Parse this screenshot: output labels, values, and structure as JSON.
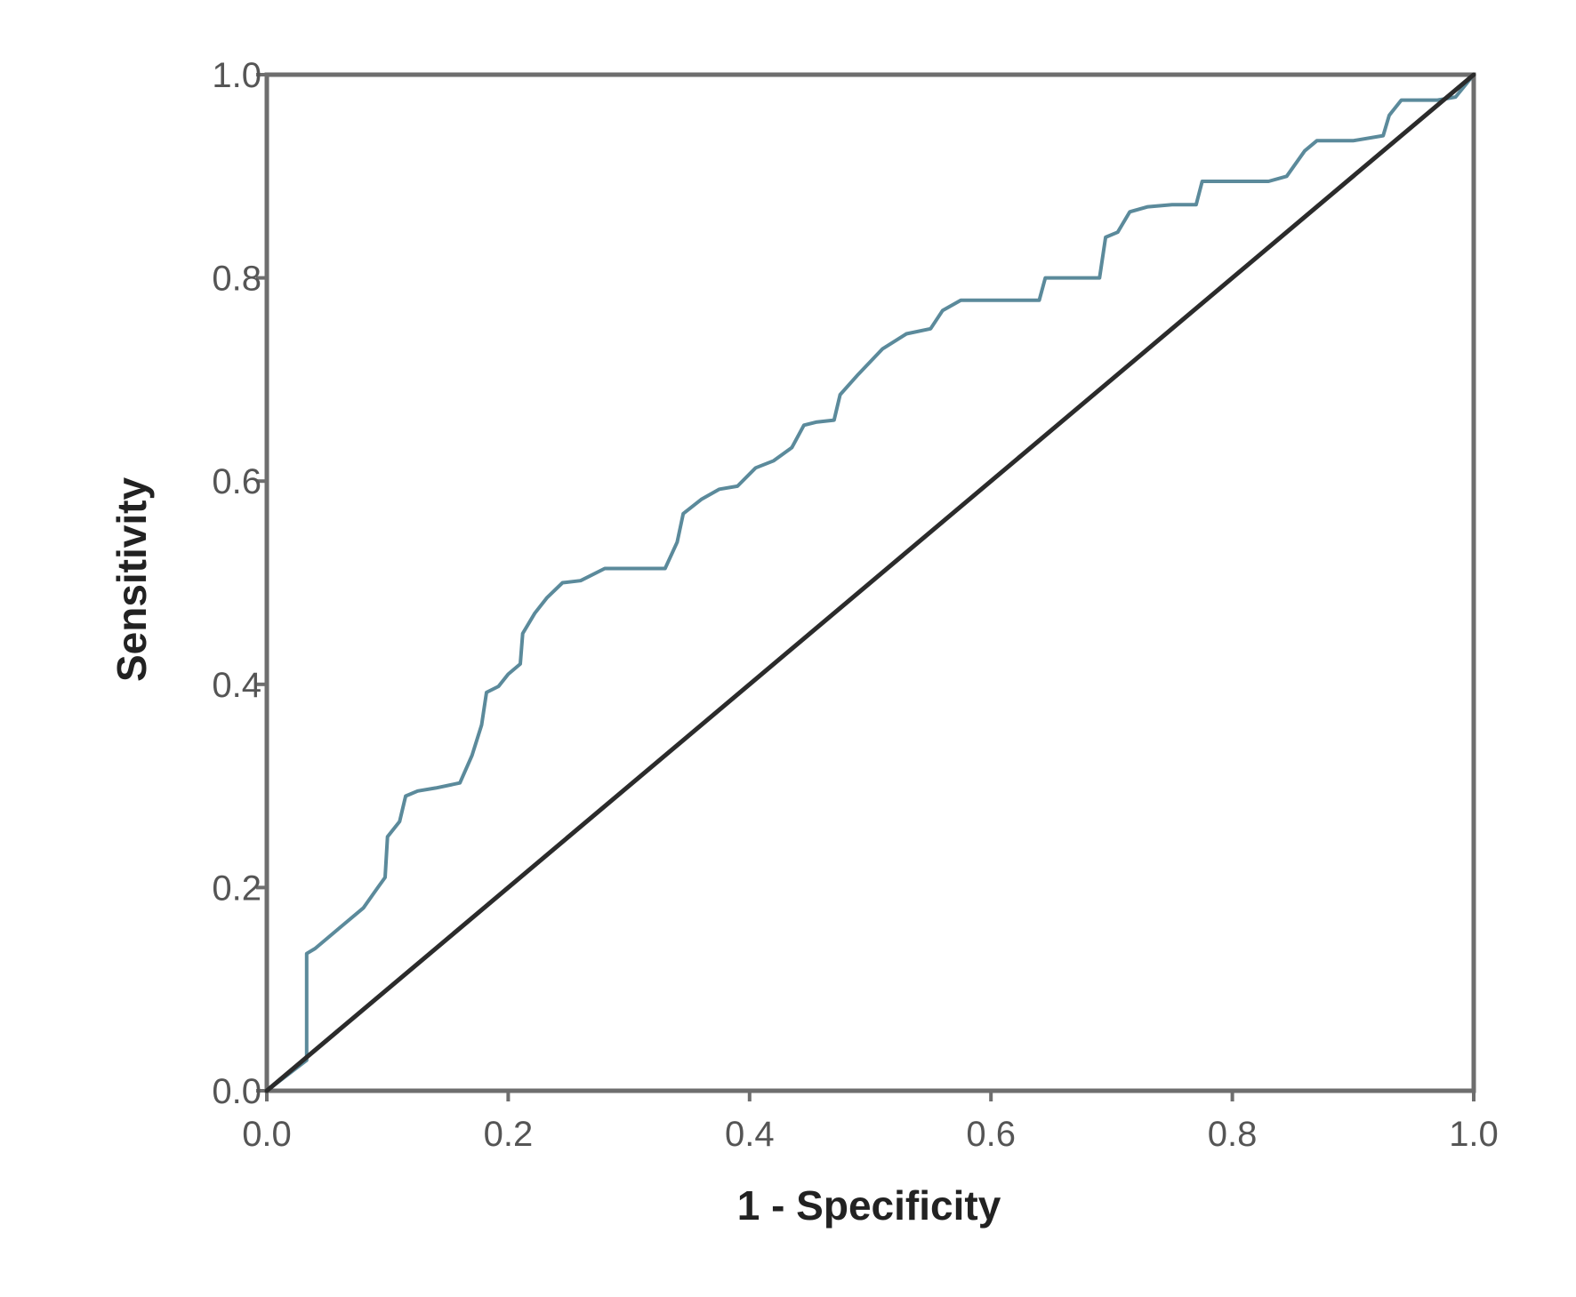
{
  "chart_data": {
    "type": "line",
    "title": "",
    "xlabel": "1 - Specificity",
    "ylabel": "Sensitivity",
    "xlim": [
      0,
      1
    ],
    "ylim": [
      0,
      1
    ],
    "x_ticks": [
      "0.0",
      "0.2",
      "0.4",
      "0.6",
      "0.8",
      "1.0"
    ],
    "y_ticks": [
      "0.0",
      "0.2",
      "0.4",
      "0.6",
      "0.8",
      "1.0"
    ],
    "grid": false,
    "legend": "none",
    "colors": {
      "curve": "#5b8a9b",
      "reference": "#2b2b2b",
      "frame": "#6e6e6e"
    },
    "series": [
      {
        "values": [
          [
            0.0,
            0.0
          ],
          [
            0.033,
            0.03
          ],
          [
            0.033,
            0.135
          ],
          [
            0.04,
            0.14
          ],
          [
            0.06,
            0.16
          ],
          [
            0.08,
            0.18
          ],
          [
            0.092,
            0.2
          ],
          [
            0.098,
            0.21
          ],
          [
            0.1,
            0.25
          ],
          [
            0.11,
            0.265
          ],
          [
            0.115,
            0.29
          ],
          [
            0.125,
            0.295
          ],
          [
            0.14,
            0.298
          ],
          [
            0.16,
            0.303
          ],
          [
            0.17,
            0.33
          ],
          [
            0.178,
            0.36
          ],
          [
            0.182,
            0.392
          ],
          [
            0.192,
            0.398
          ],
          [
            0.2,
            0.41
          ],
          [
            0.21,
            0.42
          ],
          [
            0.212,
            0.45
          ],
          [
            0.222,
            0.47
          ],
          [
            0.232,
            0.485
          ],
          [
            0.245,
            0.5
          ],
          [
            0.26,
            0.502
          ],
          [
            0.28,
            0.514
          ],
          [
            0.3,
            0.514
          ],
          [
            0.33,
            0.514
          ],
          [
            0.34,
            0.54
          ],
          [
            0.345,
            0.568
          ],
          [
            0.36,
            0.582
          ],
          [
            0.375,
            0.592
          ],
          [
            0.39,
            0.595
          ],
          [
            0.405,
            0.613
          ],
          [
            0.42,
            0.62
          ],
          [
            0.435,
            0.633
          ],
          [
            0.445,
            0.655
          ],
          [
            0.455,
            0.658
          ],
          [
            0.47,
            0.66
          ],
          [
            0.475,
            0.685
          ],
          [
            0.49,
            0.705
          ],
          [
            0.51,
            0.73
          ],
          [
            0.53,
            0.745
          ],
          [
            0.55,
            0.75
          ],
          [
            0.56,
            0.768
          ],
          [
            0.575,
            0.778
          ],
          [
            0.6,
            0.778
          ],
          [
            0.64,
            0.778
          ],
          [
            0.645,
            0.8
          ],
          [
            0.67,
            0.8
          ],
          [
            0.69,
            0.8
          ],
          [
            0.695,
            0.84
          ],
          [
            0.705,
            0.845
          ],
          [
            0.715,
            0.865
          ],
          [
            0.73,
            0.87
          ],
          [
            0.75,
            0.872
          ],
          [
            0.77,
            0.872
          ],
          [
            0.775,
            0.895
          ],
          [
            0.8,
            0.895
          ],
          [
            0.83,
            0.895
          ],
          [
            0.845,
            0.9
          ],
          [
            0.86,
            0.925
          ],
          [
            0.87,
            0.935
          ],
          [
            0.9,
            0.935
          ],
          [
            0.925,
            0.94
          ],
          [
            0.93,
            0.96
          ],
          [
            0.94,
            0.975
          ],
          [
            0.97,
            0.975
          ],
          [
            0.985,
            0.978
          ],
          [
            1.0,
            1.0
          ]
        ]
      },
      {
        "values": [
          [
            0,
            0
          ],
          [
            1,
            1
          ]
        ]
      }
    ]
  }
}
